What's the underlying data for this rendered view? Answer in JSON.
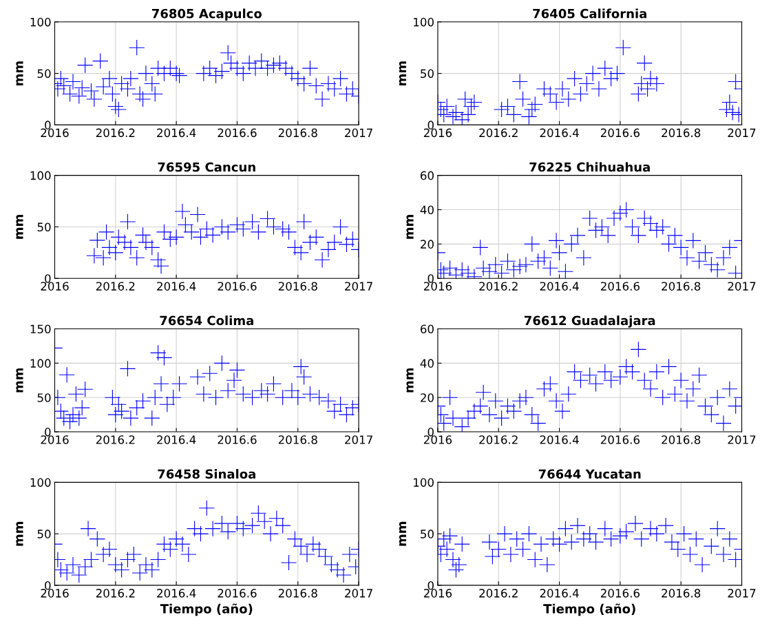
{
  "chart_data": [
    {
      "type": "scatter",
      "title": "76805 Acapulco",
      "ylabel": "mm",
      "color": "#0000ff",
      "marker": "cross",
      "grid": true,
      "xlim": [
        2016,
        2017
      ],
      "xticks": [
        2016,
        2016.2,
        2016.4,
        2016.6,
        2016.8,
        2017
      ],
      "ylim": [
        0,
        100
      ],
      "yticks": [
        0,
        50,
        100
      ],
      "x": [
        2016.0,
        2016.01,
        2016.02,
        2016.03,
        2016.05,
        2016.06,
        2016.08,
        2016.09,
        2016.1,
        2016.12,
        2016.13,
        2016.15,
        2016.16,
        2016.18,
        2016.19,
        2016.2,
        2016.21,
        2016.22,
        2016.24,
        2016.25,
        2016.27,
        2016.28,
        2016.29,
        2016.3,
        2016.32,
        2016.33,
        2016.34,
        2016.36,
        2016.38,
        2016.4,
        2016.41,
        2016.49,
        2016.51,
        2016.53,
        2016.55,
        2016.57,
        2016.58,
        2016.6,
        2016.62,
        2016.64,
        2016.66,
        2016.68,
        2016.7,
        2016.72,
        2016.74,
        2016.76,
        2016.78,
        2016.8,
        2016.82,
        2016.84,
        2016.86,
        2016.88,
        2016.9,
        2016.92,
        2016.94,
        2016.96,
        2016.98,
        2017.0
      ],
      "values": [
        40,
        35,
        45,
        38,
        30,
        42,
        28,
        36,
        58,
        33,
        25,
        62,
        37,
        45,
        30,
        18,
        15,
        40,
        35,
        45,
        75,
        30,
        25,
        50,
        40,
        30,
        55,
        50,
        55,
        50,
        48,
        50,
        55,
        48,
        52,
        70,
        60,
        55,
        50,
        60,
        55,
        62,
        55,
        58,
        60,
        55,
        50,
        45,
        40,
        55,
        38,
        25,
        40,
        35,
        45,
        30,
        35,
        28
      ]
    },
    {
      "type": "scatter",
      "title": "76405 California",
      "ylabel": "mm",
      "color": "#0000ff",
      "marker": "cross",
      "grid": true,
      "xlim": [
        2016,
        2017
      ],
      "xticks": [
        2016,
        2016.2,
        2016.4,
        2016.6,
        2016.8,
        2017
      ],
      "ylim": [
        0,
        100
      ],
      "yticks": [
        0,
        50,
        100
      ],
      "x": [
        2016.0,
        2016.01,
        2016.02,
        2016.03,
        2016.05,
        2016.06,
        2016.08,
        2016.09,
        2016.1,
        2016.11,
        2016.12,
        2016.21,
        2016.23,
        2016.25,
        2016.27,
        2016.28,
        2016.3,
        2016.31,
        2016.32,
        2016.35,
        2016.37,
        2016.39,
        2016.41,
        2016.43,
        2016.45,
        2016.47,
        2016.49,
        2016.51,
        2016.53,
        2016.55,
        2016.57,
        2016.59,
        2016.61,
        2016.66,
        2016.67,
        2016.68,
        2016.69,
        2016.7,
        2016.72,
        2016.95,
        2016.96,
        2016.97,
        2016.98,
        2016.99,
        2017.0
      ],
      "values": [
        22,
        15,
        10,
        18,
        8,
        12,
        5,
        25,
        10,
        18,
        22,
        15,
        18,
        10,
        42,
        25,
        8,
        15,
        20,
        35,
        30,
        22,
        35,
        25,
        45,
        30,
        40,
        50,
        35,
        55,
        45,
        50,
        75,
        30,
        40,
        60,
        35,
        45,
        40,
        15,
        22,
        12,
        42,
        10,
        35
      ]
    },
    {
      "type": "scatter",
      "title": "76595 Cancun",
      "ylabel": "mm",
      "color": "#0000ff",
      "marker": "cross",
      "grid": true,
      "xlim": [
        2016,
        2017
      ],
      "xticks": [
        2016,
        2016.2,
        2016.4,
        2016.6,
        2016.8,
        2017
      ],
      "ylim": [
        0,
        100
      ],
      "yticks": [
        0,
        50,
        100
      ],
      "x": [
        2016.13,
        2016.14,
        2016.16,
        2016.17,
        2016.18,
        2016.2,
        2016.21,
        2016.23,
        2016.24,
        2016.25,
        2016.27,
        2016.29,
        2016.3,
        2016.32,
        2016.34,
        2016.35,
        2016.36,
        2016.38,
        2016.4,
        2016.42,
        2016.43,
        2016.45,
        2016.47,
        2016.48,
        2016.5,
        2016.52,
        2016.55,
        2016.57,
        2016.6,
        2016.62,
        2016.65,
        2016.67,
        2016.7,
        2016.72,
        2016.75,
        2016.77,
        2016.79,
        2016.81,
        2016.82,
        2016.84,
        2016.86,
        2016.88,
        2016.9,
        2016.92,
        2016.94,
        2016.96,
        2016.98,
        2017.0
      ],
      "values": [
        22,
        37,
        20,
        45,
        30,
        25,
        40,
        35,
        55,
        30,
        20,
        42,
        35,
        30,
        18,
        12,
        45,
        38,
        40,
        65,
        52,
        45,
        62,
        40,
        48,
        42,
        50,
        45,
        52,
        48,
        55,
        45,
        58,
        50,
        48,
        45,
        30,
        25,
        55,
        35,
        40,
        18,
        28,
        35,
        50,
        33,
        38,
        28
      ]
    },
    {
      "type": "scatter",
      "title": "76225 Chihuahua",
      "ylabel": "mm",
      "color": "#0000ff",
      "marker": "cross",
      "grid": true,
      "xlim": [
        2016,
        2017
      ],
      "xticks": [
        2016,
        2016.2,
        2016.4,
        2016.6,
        2016.8,
        2017
      ],
      "ylim": [
        0,
        60
      ],
      "yticks": [
        0,
        20,
        40,
        60
      ],
      "x": [
        2016.0,
        2016.01,
        2016.02,
        2016.04,
        2016.06,
        2016.08,
        2016.1,
        2016.12,
        2016.14,
        2016.15,
        2016.17,
        2016.19,
        2016.21,
        2016.23,
        2016.25,
        2016.27,
        2016.29,
        2016.31,
        2016.33,
        2016.35,
        2016.37,
        2016.39,
        2016.4,
        2016.42,
        2016.44,
        2016.46,
        2016.48,
        2016.5,
        2016.52,
        2016.54,
        2016.56,
        2016.58,
        2016.6,
        2016.62,
        2016.64,
        2016.66,
        2016.68,
        2016.7,
        2016.72,
        2016.74,
        2016.76,
        2016.78,
        2016.8,
        2016.82,
        2016.84,
        2016.86,
        2016.88,
        2016.9,
        2016.92,
        2016.94,
        2016.96,
        2016.98,
        2017.0
      ],
      "values": [
        15,
        5,
        3,
        6,
        2,
        5,
        3,
        1,
        18,
        6,
        4,
        8,
        3,
        10,
        5,
        7,
        8,
        20,
        10,
        12,
        6,
        22,
        15,
        4,
        20,
        25,
        12,
        35,
        28,
        30,
        25,
        35,
        38,
        40,
        30,
        25,
        35,
        32,
        28,
        30,
        20,
        25,
        18,
        12,
        22,
        10,
        15,
        8,
        5,
        12,
        18,
        3,
        22
      ]
    },
    {
      "type": "scatter",
      "title": "76654 Colima",
      "ylabel": "mm",
      "color": "#0000ff",
      "marker": "cross",
      "grid": true,
      "xlim": [
        2016,
        2017
      ],
      "xticks": [
        2016,
        2016.2,
        2016.4,
        2016.6,
        2016.8,
        2017
      ],
      "ylim": [
        0,
        150
      ],
      "yticks": [
        0,
        50,
        100,
        150
      ],
      "x": [
        2016.0,
        2016.01,
        2016.02,
        2016.03,
        2016.04,
        2016.05,
        2016.06,
        2016.07,
        2016.08,
        2016.09,
        2016.1,
        2016.19,
        2016.2,
        2016.21,
        2016.22,
        2016.24,
        2016.25,
        2016.27,
        2016.29,
        2016.32,
        2016.33,
        2016.34,
        2016.35,
        2016.36,
        2016.37,
        2016.39,
        2016.41,
        2016.47,
        2016.49,
        2016.51,
        2016.53,
        2016.55,
        2016.57,
        2016.59,
        2016.6,
        2016.62,
        2016.65,
        2016.68,
        2016.7,
        2016.72,
        2016.75,
        2016.78,
        2016.8,
        2016.81,
        2016.82,
        2016.84,
        2016.87,
        2016.9,
        2016.92,
        2016.94,
        2016.96,
        2016.98,
        2017.0
      ],
      "values": [
        122,
        50,
        30,
        20,
        83,
        15,
        25,
        55,
        20,
        35,
        62,
        50,
        25,
        40,
        30,
        92,
        20,
        35,
        45,
        20,
        50,
        115,
        70,
        108,
        40,
        50,
        70,
        80,
        55,
        85,
        50,
        100,
        60,
        75,
        90,
        55,
        50,
        60,
        55,
        70,
        50,
        60,
        50,
        95,
        80,
        55,
        50,
        45,
        30,
        40,
        25,
        35,
        40
      ]
    },
    {
      "type": "scatter",
      "title": "76612 Guadalajara",
      "ylabel": "mm",
      "color": "#0000ff",
      "marker": "cross",
      "grid": true,
      "xlim": [
        2016,
        2017
      ],
      "xticks": [
        2016,
        2016.2,
        2016.4,
        2016.6,
        2016.8,
        2017
      ],
      "ylim": [
        0,
        60
      ],
      "yticks": [
        0,
        20,
        40,
        60
      ],
      "x": [
        2016.0,
        2016.01,
        2016.02,
        2016.04,
        2016.05,
        2016.08,
        2016.1,
        2016.12,
        2016.14,
        2016.15,
        2016.17,
        2016.19,
        2016.21,
        2016.23,
        2016.25,
        2016.27,
        2016.29,
        2016.31,
        2016.33,
        2016.35,
        2016.37,
        2016.39,
        2016.41,
        2016.43,
        2016.45,
        2016.47,
        2016.5,
        2016.52,
        2016.55,
        2016.57,
        2016.6,
        2016.62,
        2016.64,
        2016.66,
        2016.68,
        2016.7,
        2016.72,
        2016.74,
        2016.76,
        2016.78,
        2016.8,
        2016.82,
        2016.84,
        2016.86,
        2016.88,
        2016.9,
        2016.92,
        2016.94,
        2016.96,
        2016.98,
        2017.0
      ],
      "values": [
        15,
        10,
        5,
        20,
        8,
        3,
        8,
        12,
        15,
        23,
        10,
        18,
        8,
        15,
        12,
        18,
        20,
        10,
        5,
        25,
        28,
        18,
        12,
        22,
        35,
        30,
        33,
        28,
        35,
        30,
        32,
        38,
        35,
        48,
        30,
        25,
        35,
        20,
        38,
        22,
        30,
        18,
        25,
        33,
        15,
        10,
        20,
        5,
        25,
        15,
        20
      ]
    },
    {
      "type": "scatter",
      "title": "76458 Sinaloa",
      "ylabel": "mm",
      "xlabel": "Tiempo (año)",
      "color": "#0000ff",
      "marker": "cross",
      "grid": true,
      "xlim": [
        2016,
        2017
      ],
      "xticks": [
        2016,
        2016.2,
        2016.4,
        2016.6,
        2016.8,
        2017
      ],
      "ylim": [
        0,
        100
      ],
      "yticks": [
        0,
        50,
        100
      ],
      "x": [
        2016.0,
        2016.01,
        2016.02,
        2016.04,
        2016.06,
        2016.08,
        2016.1,
        2016.11,
        2016.12,
        2016.14,
        2016.16,
        2016.18,
        2016.2,
        2016.22,
        2016.24,
        2016.26,
        2016.28,
        2016.3,
        2016.32,
        2016.34,
        2016.36,
        2016.38,
        2016.4,
        2016.42,
        2016.44,
        2016.46,
        2016.48,
        2016.5,
        2016.52,
        2016.55,
        2016.57,
        2016.6,
        2016.62,
        2016.65,
        2016.67,
        2016.69,
        2016.71,
        2016.73,
        2016.75,
        2016.77,
        2016.79,
        2016.81,
        2016.83,
        2016.85,
        2016.87,
        2016.89,
        2016.91,
        2016.93,
        2016.95,
        2016.97,
        2016.99,
        2017.0
      ],
      "values": [
        40,
        25,
        15,
        12,
        20,
        10,
        18,
        55,
        25,
        45,
        30,
        35,
        20,
        15,
        25,
        30,
        12,
        20,
        15,
        25,
        40,
        35,
        45,
        40,
        30,
        55,
        50,
        75,
        55,
        60,
        52,
        60,
        55,
        58,
        70,
        62,
        50,
        65,
        58,
        22,
        45,
        38,
        30,
        40,
        35,
        28,
        20,
        15,
        10,
        30,
        18,
        35
      ]
    },
    {
      "type": "scatter",
      "title": "76644 Yucatan",
      "ylabel": "mm",
      "xlabel": "Tiempo (año)",
      "color": "#0000ff",
      "marker": "cross",
      "grid": true,
      "xlim": [
        2016,
        2017
      ],
      "xticks": [
        2016,
        2016.2,
        2016.4,
        2016.6,
        2016.8,
        2017
      ],
      "ylim": [
        0,
        100
      ],
      "yticks": [
        0,
        50,
        100
      ],
      "x": [
        2016.0,
        2016.01,
        2016.02,
        2016.03,
        2016.04,
        2016.05,
        2016.06,
        2016.07,
        2016.08,
        2016.17,
        2016.18,
        2016.2,
        2016.22,
        2016.24,
        2016.26,
        2016.28,
        2016.3,
        2016.32,
        2016.34,
        2016.36,
        2016.38,
        2016.4,
        2016.42,
        2016.44,
        2016.46,
        2016.48,
        2016.5,
        2016.52,
        2016.55,
        2016.57,
        2016.6,
        2016.62,
        2016.65,
        2016.67,
        2016.7,
        2016.72,
        2016.75,
        2016.77,
        2016.79,
        2016.81,
        2016.83,
        2016.85,
        2016.87,
        2016.9,
        2016.92,
        2016.94,
        2016.96,
        2016.98,
        2017.0
      ],
      "values": [
        38,
        30,
        45,
        35,
        48,
        25,
        15,
        20,
        40,
        42,
        28,
        35,
        50,
        30,
        45,
        35,
        50,
        25,
        40,
        20,
        45,
        40,
        55,
        42,
        58,
        45,
        50,
        42,
        55,
        45,
        48,
        52,
        60,
        45,
        55,
        50,
        58,
        42,
        35,
        50,
        30,
        45,
        20,
        38,
        55,
        30,
        45,
        25,
        35
      ]
    }
  ]
}
